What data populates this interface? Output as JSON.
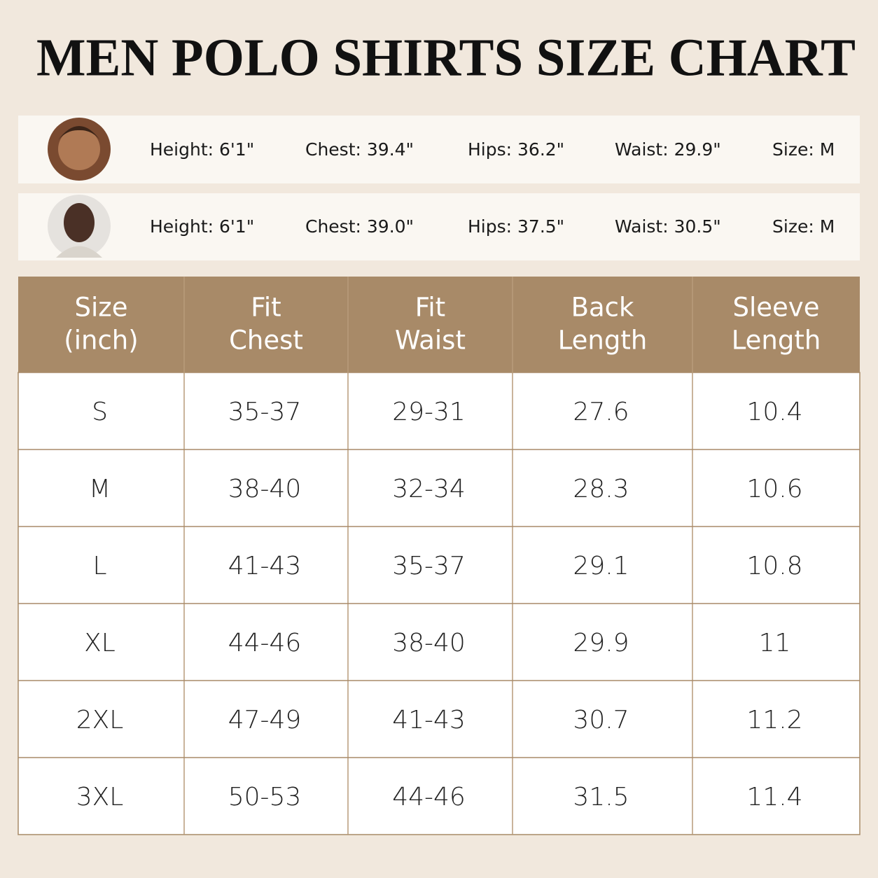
{
  "header": {
    "title": "MEN POLO SHIRTS SIZE CHART"
  },
  "models": [
    {
      "fields": [
        "Height: 6'1\"",
        "Chest: 39.4\"",
        "Hips: 36.2\"",
        "Waist: 29.9\"",
        "Size: M"
      ]
    },
    {
      "fields": [
        "Height: 6'1\"",
        "Chest: 39.0\"",
        "Hips: 37.5\"",
        "Waist: 30.5\"",
        "Size: M"
      ]
    }
  ],
  "table": {
    "columns": [
      [
        "Size",
        "(inch)"
      ],
      [
        "Fit",
        "Chest"
      ],
      [
        "Fit",
        "Waist"
      ],
      [
        "Back",
        "Length"
      ],
      [
        "Sleeve",
        "Length"
      ]
    ],
    "rows": [
      [
        "S",
        "35-37",
        "29-31",
        "27.6",
        "10.4"
      ],
      [
        "M",
        "38-40",
        "32-34",
        "28.3",
        "10.6"
      ],
      [
        "L",
        "41-43",
        "35-37",
        "29.1",
        "10.8"
      ],
      [
        "XL",
        "44-46",
        "38-40",
        "29.9",
        "11"
      ],
      [
        "2XL",
        "47-49",
        "41-43",
        "30.7",
        "11.2"
      ],
      [
        "3XL",
        "50-53",
        "44-46",
        "31.5",
        "11.4"
      ]
    ]
  }
}
